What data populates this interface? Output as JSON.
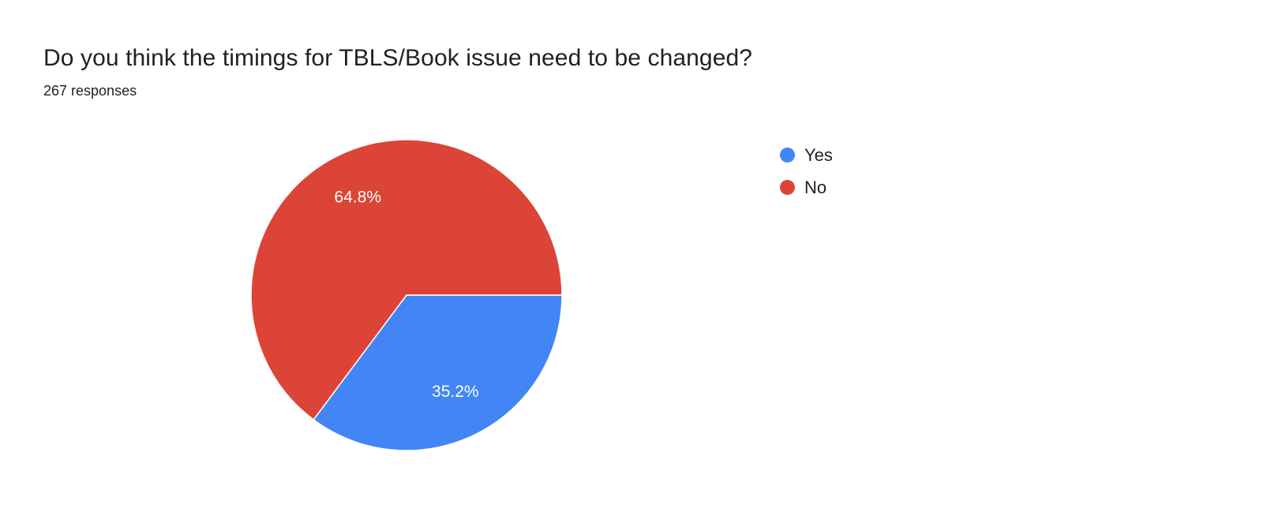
{
  "header": {
    "title": "Do you think the timings for TBLS/Book issue need to be changed?",
    "responses": "267 responses"
  },
  "chart_data": {
    "type": "pie",
    "title": "Do you think the timings for TBLS/Book issue need to be changed?",
    "responses_count": 267,
    "start_angle_deg": 0,
    "direction": "clockwise",
    "legend_position": "right",
    "label_color": "#ffffff",
    "slices": [
      {
        "label": "Yes",
        "value": 35.2,
        "display": "35.2%",
        "color": "#4285f4"
      },
      {
        "label": "No",
        "value": 64.8,
        "display": "64.8%",
        "color": "#db4437"
      }
    ]
  }
}
